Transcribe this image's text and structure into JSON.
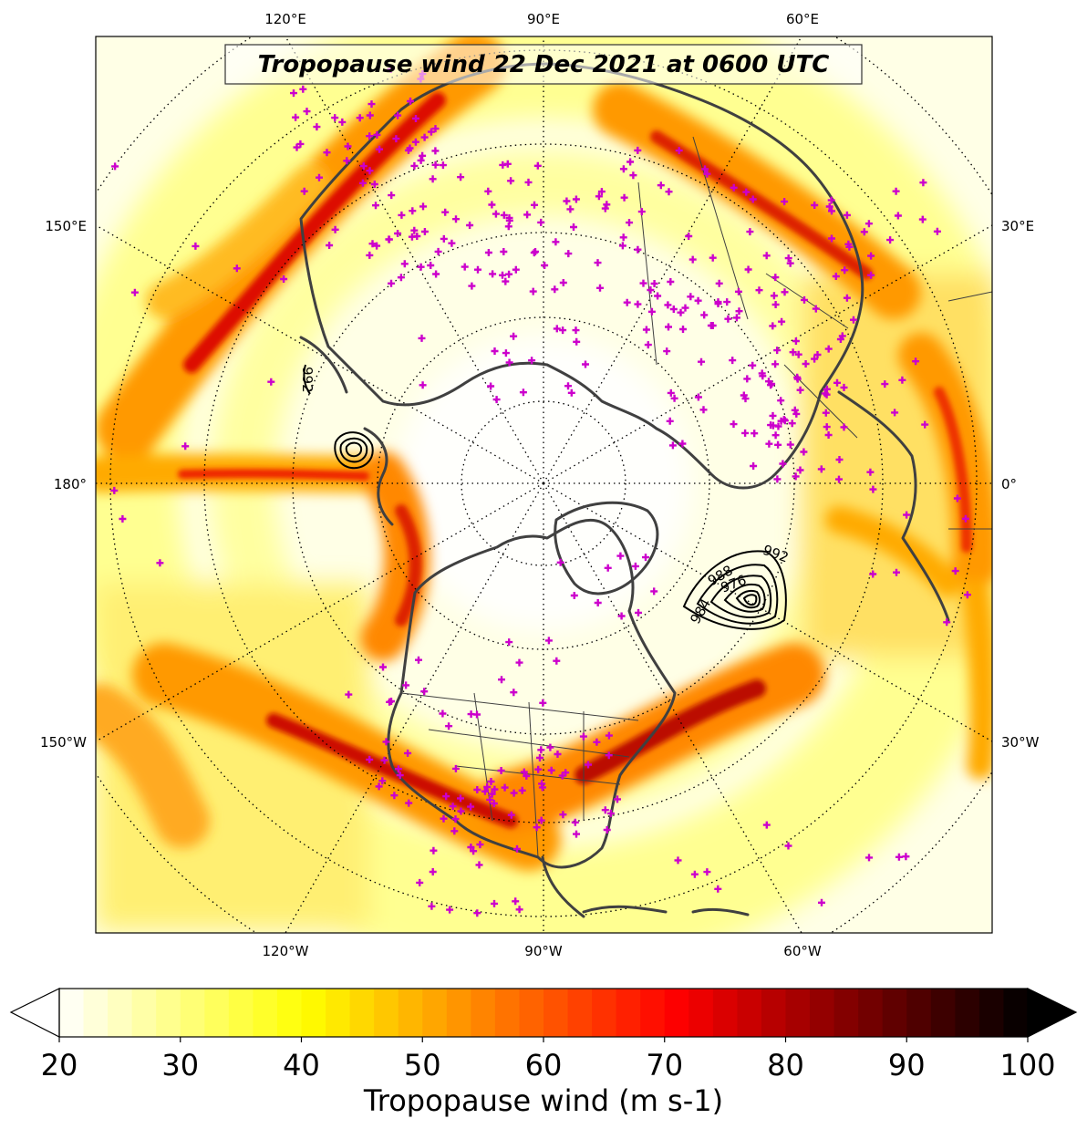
{
  "title": "Tropopause wind 22 Dec 2021 at 0600 UTC",
  "map": {
    "projection": "north polar stereographic",
    "longitude_labels": {
      "top": [
        "120°E",
        "90°E",
        "60°E"
      ],
      "left": [
        "150°E",
        "180°",
        "150°W"
      ],
      "right": [
        "30°E",
        "0°",
        "30°W"
      ],
      "bottom": [
        "120°W",
        "90°W",
        "60°W"
      ]
    },
    "graticule": "dotted",
    "coastline_color": "#404040",
    "station_marker": "+",
    "station_color": "#cc00cc"
  },
  "contours": {
    "color": "#000000",
    "labels": [
      "992",
      "992",
      "988",
      "984",
      "976"
    ]
  },
  "colorbar": {
    "label": "Tropopause wind (m s-1)",
    "ticks": [
      "20",
      "30",
      "40",
      "50",
      "60",
      "70",
      "80",
      "90",
      "100"
    ],
    "min": 20,
    "max": 100,
    "step": 2,
    "extend": "both",
    "colormap": "hot_r"
  }
}
